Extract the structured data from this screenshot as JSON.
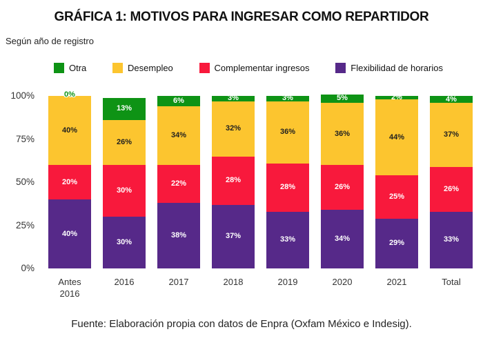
{
  "header": {
    "title": "GRÁFICA 1: MOTIVOS PARA INGRESAR COMO REPARTIDOR",
    "subtitle": "Según año de registro"
  },
  "footer": {
    "source": "Fuente: Elaboración propia con datos de Enpra (Oxfam México e Indesig)."
  },
  "chart_data": {
    "type": "bar",
    "stacked": true,
    "percent": true,
    "title": "GRÁFICA 1: MOTIVOS PARA INGRESAR COMO REPARTIDOR",
    "subtitle": "Según año de registro",
    "legend_position": "top",
    "grid": false,
    "ylim": [
      0,
      100
    ],
    "yticks": [
      "100%",
      "75%",
      "50%",
      "25%",
      "0%"
    ],
    "categories": [
      "Antes 2016",
      "2016",
      "2017",
      "2018",
      "2019",
      "2020",
      "2021",
      "Total"
    ],
    "series": [
      {
        "name": "Otra",
        "color": "#0e9315",
        "label_color": "#ffffff",
        "values": [
          0,
          13,
          6,
          3,
          3,
          5,
          2,
          4
        ]
      },
      {
        "name": "Desempleo",
        "color": "#fcc52f",
        "label_color": "#1f1f1f",
        "values": [
          40,
          26,
          34,
          32,
          36,
          36,
          44,
          37
        ]
      },
      {
        "name": "Complementar ingresos",
        "color": "#f8193c",
        "label_color": "#ffffff",
        "values": [
          20,
          30,
          22,
          28,
          28,
          26,
          25,
          26
        ]
      },
      {
        "name": "Flexibilidad de horarios",
        "color": "#562989",
        "label_color": "#ffffff",
        "values": [
          40,
          30,
          38,
          37,
          33,
          34,
          29,
          33
        ]
      }
    ]
  }
}
